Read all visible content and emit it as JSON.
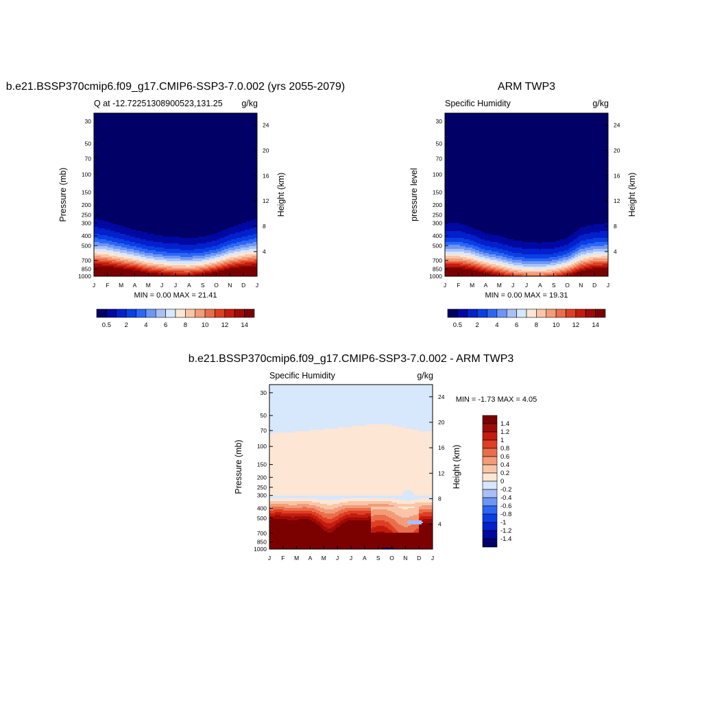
{
  "colors": {
    "humidity_scale": [
      "#000066",
      "#0008a2",
      "#0220cb",
      "#0a3fe6",
      "#2d66f5",
      "#6c95f5",
      "#a8c0f5",
      "#d7e7fc",
      "#fde6d4",
      "#f9c5a8",
      "#f29c79",
      "#ea6e4c",
      "#de3f23",
      "#c51b0e",
      "#9e0b07",
      "#7b0000"
    ],
    "difference_scale": [
      "#000066",
      "#0008a2",
      "#0220cb",
      "#0a3fe6",
      "#2d66f5",
      "#6c95f5",
      "#a8c0f5",
      "#d7e7fc",
      "#fde6d4",
      "#f9c5a8",
      "#f29c79",
      "#ea6e4c",
      "#de3f23",
      "#c51b0e",
      "#9e0b07",
      "#7b0000"
    ]
  },
  "panels": {
    "model": {
      "title": "b.e21.BSSP370cmip6.f09_g17.CMIP6-SSP3-7.0.002 (yrs 2055-2079)",
      "left_text": "Q at -12.72251308900523,131.25",
      "right_text": "g/kg",
      "ylabel": "Pressure (mb)",
      "y2label": "Height (km)",
      "minmax": "MIN =   0.00 MAX =  21.41",
      "colorbar_labels": [
        "0.5",
        "2",
        "4",
        "6",
        "8",
        "10",
        "12",
        "14"
      ]
    },
    "obs": {
      "title": "ARM TWP3",
      "left_text": "Specific Humidity",
      "right_text": "g/kg",
      "ylabel": "pressure level",
      "y2label": "Height (km)",
      "minmax": "MIN =   0.00 MAX =  19.31",
      "colorbar_labels": [
        "0.5",
        "2",
        "4",
        "6",
        "8",
        "10",
        "12",
        "14"
      ]
    },
    "diff": {
      "title": "b.e21.BSSP370cmip6.f09_g17.CMIP6-SSP3-7.0.002 - ARM TWP3",
      "left_text": "Specific Humidity",
      "right_text": "g/kg",
      "ylabel": "Pressure (mb)",
      "y2label": "Height (km)",
      "minmax": "MIN =  -1.73 MAX =   4.05",
      "colorbar_labels": [
        "1.4",
        "1.2",
        "1",
        "0.8",
        "0.6",
        "0.4",
        "0.2",
        "0",
        "-0.2",
        "-0.4",
        "-0.6",
        "-0.8",
        "-1",
        "-1.2",
        "-1.4"
      ]
    }
  },
  "chart_data": [
    {
      "type": "heatmap",
      "title": "b.e21.BSSP370cmip6.f09_g17.CMIP6-SSP3-7.0.002 (yrs 2055-2079)",
      "x_ticks": [
        "J",
        "F",
        "M",
        "A",
        "M",
        "J",
        "J",
        "A",
        "S",
        "O",
        "N",
        "D",
        "J"
      ],
      "y_ticks": [
        "30",
        "50",
        "70",
        "100",
        "150",
        "200",
        "250",
        "300",
        "400",
        "500",
        "700",
        "850",
        "1000"
      ],
      "y2_ticks": [
        "24",
        "20",
        "16",
        "12",
        "8",
        "4"
      ],
      "ylabel": "Pressure (mb)",
      "y2label": "Height (km)",
      "units": "g/kg",
      "levels": [
        0.5,
        1,
        2,
        3,
        4,
        5,
        6,
        7,
        8,
        9,
        10,
        11,
        12,
        13,
        14
      ],
      "min": 0.0,
      "max": 21.41,
      "moist_top_pressure_by_month_mb": [
        270,
        290,
        320,
        350,
        380,
        400,
        410,
        420,
        410,
        380,
        330,
        300,
        270
      ],
      "surface_max_by_month_gkg": [
        20,
        20,
        19,
        18,
        16,
        15,
        14,
        14,
        15,
        17,
        19,
        20,
        20
      ]
    },
    {
      "type": "heatmap",
      "title": "ARM TWP3",
      "x_ticks": [
        "J",
        "F",
        "M",
        "A",
        "M",
        "J",
        "J",
        "A",
        "S",
        "O",
        "N",
        "D",
        "J"
      ],
      "y_ticks": [
        "30",
        "50",
        "70",
        "100",
        "150",
        "200",
        "250",
        "300",
        "400",
        "500",
        "700",
        "850",
        "1000"
      ],
      "y2_ticks": [
        "24",
        "20",
        "16",
        "12",
        "8",
        "4"
      ],
      "ylabel": "pressure level",
      "y2label": "Height (km)",
      "units": "g/kg",
      "levels": [
        0.5,
        1,
        2,
        3,
        4,
        5,
        6,
        7,
        8,
        9,
        10,
        11,
        12,
        13,
        14
      ],
      "min": 0.0,
      "max": 19.31,
      "moist_top_pressure_by_month_mb": [
        300,
        300,
        330,
        380,
        400,
        440,
        460,
        470,
        460,
        420,
        330,
        310,
        300
      ],
      "surface_max_by_month_gkg": [
        19,
        19,
        18,
        16,
        14,
        12,
        11,
        11,
        12,
        14,
        17,
        19,
        19
      ]
    },
    {
      "type": "heatmap",
      "title": "b.e21.BSSP370cmip6.f09_g17.CMIP6-SSP3-7.0.002 - ARM TWP3",
      "x_ticks": [
        "J",
        "F",
        "M",
        "A",
        "M",
        "J",
        "J",
        "A",
        "S",
        "O",
        "N",
        "D",
        "J"
      ],
      "y_ticks": [
        "30",
        "50",
        "70",
        "100",
        "150",
        "200",
        "250",
        "300",
        "400",
        "500",
        "700",
        "850",
        "1000"
      ],
      "y2_ticks": [
        "24",
        "20",
        "16",
        "12",
        "8",
        "4"
      ],
      "ylabel": "Pressure (mb)",
      "y2label": "Height (km)",
      "units": "g/kg",
      "levels": [
        -1.4,
        -1.2,
        -1,
        -0.8,
        -0.6,
        -0.4,
        -0.2,
        0,
        0.2,
        0.4,
        0.6,
        0.8,
        1,
        1.2,
        1.4
      ],
      "min": -1.73,
      "max": 4.05,
      "upper_boundary_pressure_by_month_mb": [
        75,
        73,
        72,
        70,
        68,
        66,
        64,
        62,
        60,
        62,
        66,
        70,
        72
      ],
      "notes": "light positive (0 to 0.2) between upper boundary and ~300 mb; positive up to >1.4 below 400 mb; small negative patches near Nov-Dec at 300 mb and 550 mb, and near surface in Oct"
    }
  ]
}
